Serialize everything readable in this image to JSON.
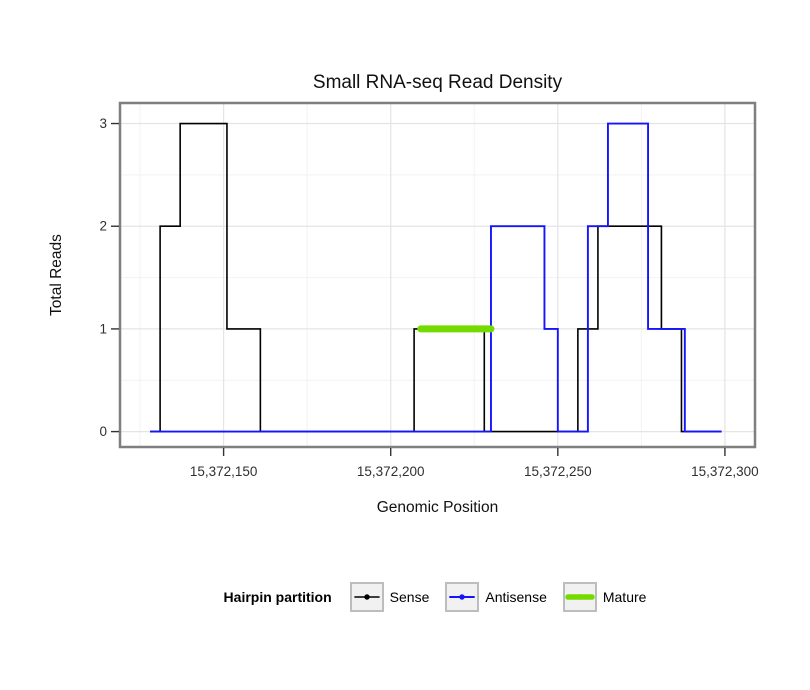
{
  "title": "Small RNA-seq Read Density",
  "axes": {
    "x_title": "Genomic Position",
    "y_title": "Total Reads"
  },
  "legend": {
    "title": "Hairpin partition",
    "entries": [
      {
        "label": "Sense",
        "color": "#000000",
        "line_width": 1.6
      },
      {
        "label": "Antisense",
        "color": "#1414ff",
        "line_width": 1.9
      },
      {
        "label": "Mature",
        "color": "#74da00",
        "line_width": 5.5
      }
    ]
  },
  "chart_data": {
    "type": "line",
    "subtype": "step",
    "title": "Small RNA-seq Read Density",
    "xlabel": "Genomic Position",
    "ylabel": "Total Reads",
    "xlim": [
      15372119,
      15372309
    ],
    "ylim": [
      -0.15,
      3.2
    ],
    "grid": true,
    "legend_position": "bottom",
    "x_ticks": [
      {
        "value": 15372150,
        "label": "15,372,150"
      },
      {
        "value": 15372200,
        "label": "15,372,200"
      },
      {
        "value": 15372250,
        "label": "15,372,250"
      },
      {
        "value": 15372300,
        "label": "15,372,300"
      }
    ],
    "y_ticks": [
      {
        "value": 0,
        "label": "0"
      },
      {
        "value": 1,
        "label": "1"
      },
      {
        "value": 2,
        "label": "2"
      },
      {
        "value": 3,
        "label": "3"
      }
    ],
    "x_minor_gridlines": [
      15372125,
      15372175,
      15372225,
      15372275
    ],
    "y_minor_gridlines": [
      0.5,
      1.5,
      2.5
    ],
    "series": [
      {
        "name": "Sense",
        "color": "#000000",
        "width": 1.6,
        "linecap": "butt",
        "points": [
          [
            15372128,
            0
          ],
          [
            15372131,
            0
          ],
          [
            15372131,
            2
          ],
          [
            15372137,
            2
          ],
          [
            15372137,
            3
          ],
          [
            15372151,
            3
          ],
          [
            15372151,
            1
          ],
          [
            15372161,
            1
          ],
          [
            15372161,
            0
          ],
          [
            15372207,
            0
          ],
          [
            15372207,
            1
          ],
          [
            15372228,
            1
          ],
          [
            15372228,
            0
          ],
          [
            15372256,
            0
          ],
          [
            15372256,
            1
          ],
          [
            15372262,
            1
          ],
          [
            15372262,
            2
          ],
          [
            15372281,
            2
          ],
          [
            15372281,
            1
          ],
          [
            15372287,
            1
          ],
          [
            15372287,
            0
          ],
          [
            15372299,
            0
          ]
        ]
      },
      {
        "name": "Antisense",
        "color": "#1414ff",
        "width": 1.9,
        "linecap": "butt",
        "points": [
          [
            15372128,
            0
          ],
          [
            15372230,
            0
          ],
          [
            15372230,
            2
          ],
          [
            15372246,
            2
          ],
          [
            15372246,
            1
          ],
          [
            15372250,
            1
          ],
          [
            15372250,
            0
          ],
          [
            15372259,
            0
          ],
          [
            15372259,
            2
          ],
          [
            15372265,
            2
          ],
          [
            15372265,
            3
          ],
          [
            15372277,
            3
          ],
          [
            15372277,
            1
          ],
          [
            15372288,
            1
          ],
          [
            15372288,
            0
          ],
          [
            15372299,
            0
          ]
        ]
      },
      {
        "name": "Mature",
        "color": "#74da00",
        "width": 7,
        "linecap": "round",
        "points": [
          [
            15372209,
            1
          ],
          [
            15372230,
            1
          ]
        ]
      }
    ]
  }
}
